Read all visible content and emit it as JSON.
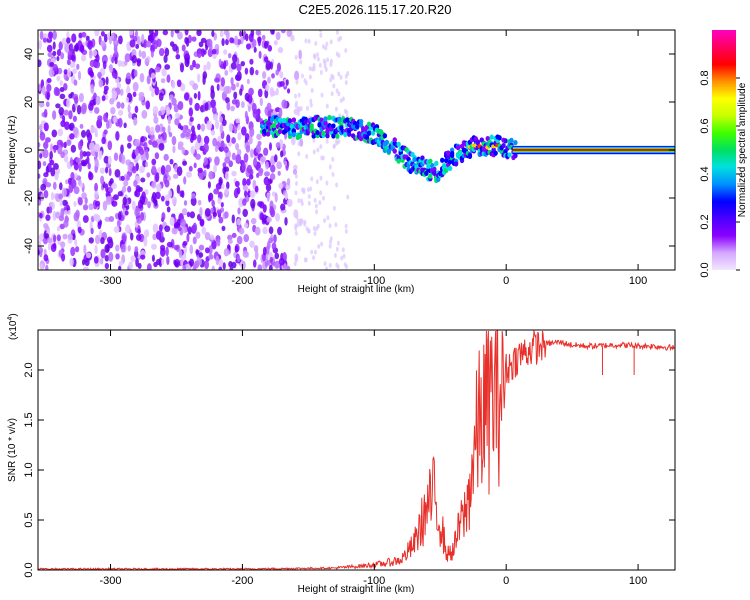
{
  "page": {
    "title": "C2E5.2026.115.17.20.R20"
  },
  "chart_data": [
    {
      "type": "heatmap",
      "xlabel": "Height of straight line (km)",
      "ylabel": "Frequency (Hz)",
      "xlim": [
        -355,
        128
      ],
      "ylim": [
        -50,
        50
      ],
      "xticks": [
        -300,
        -200,
        -100,
        0,
        100
      ],
      "yticks": [
        -40,
        -20,
        0,
        20,
        40
      ],
      "colorbar": {
        "label": "Normalized spectral amplitude",
        "range": [
          0.0,
          1.0
        ],
        "ticks": [
          0.0,
          0.2,
          0.4,
          0.6,
          0.8
        ],
        "colormap": [
          "#f2e6ff",
          "#d4a8ff",
          "#8a00ff",
          "#4b00ff",
          "#0000ff",
          "#0090ff",
          "#00e0e0",
          "#00e060",
          "#40ff00",
          "#c8ff00",
          "#ffff00",
          "#ff9000",
          "#ff0000",
          "#ff0060",
          "#ff00c0"
        ]
      },
      "signal_track": [
        {
          "x": -240,
          "y": 11
        },
        {
          "x": -180,
          "y": 10
        },
        {
          "x": -160,
          "y": 9
        },
        {
          "x": -140,
          "y": 10
        },
        {
          "x": -120,
          "y": 9
        },
        {
          "x": -100,
          "y": 7
        },
        {
          "x": -90,
          "y": 3
        },
        {
          "x": -80,
          "y": -2
        },
        {
          "x": -70,
          "y": -6
        },
        {
          "x": -60,
          "y": -8
        },
        {
          "x": -52,
          "y": -9
        },
        {
          "x": -45,
          "y": -5
        },
        {
          "x": -35,
          "y": -1
        },
        {
          "x": -25,
          "y": 2
        },
        {
          "x": -15,
          "y": 1
        },
        {
          "x": -5,
          "y": 2
        },
        {
          "x": 5,
          "y": 0.5
        },
        {
          "x": 128,
          "y": 0
        }
      ]
    },
    {
      "type": "line",
      "xlabel": "Height of straight line (km)",
      "ylabel": "SNR (10 * v/v)",
      "y_multiplier": "(x10",
      "y_multiplier_exp": "4",
      "y_multiplier_close": ")",
      "xlim": [
        -355,
        128
      ],
      "ylim": [
        0,
        2.4
      ],
      "xticks": [
        -300,
        -200,
        -100,
        0,
        100
      ],
      "yticks": [
        0.0,
        0.5,
        1.0,
        1.5,
        2.0
      ],
      "ytick_labels": [
        "0.0",
        "0.5",
        "1.0",
        "1.5",
        "2.0"
      ],
      "series": [
        {
          "color": "#e8302a",
          "x": [
            -355,
            -300,
            -200,
            -130,
            -110,
            -95,
            -80,
            -70,
            -62,
            -55,
            -50,
            -45,
            -40,
            -35,
            -30,
            -25,
            -20,
            -15,
            -10,
            -5,
            0,
            10,
            20,
            30,
            40,
            50,
            60,
            70,
            80,
            90,
            100,
            110,
            120,
            128
          ],
          "y": [
            0.01,
            0.01,
            0.01,
            0.02,
            0.04,
            0.06,
            0.1,
            0.25,
            0.55,
            0.75,
            0.5,
            0.15,
            0.2,
            0.45,
            0.6,
            1.1,
            1.5,
            1.6,
            1.75,
            1.85,
            2.0,
            2.15,
            2.22,
            2.26,
            2.28,
            2.25,
            2.24,
            2.24,
            2.25,
            2.25,
            2.24,
            2.24,
            2.23,
            2.22
          ]
        }
      ]
    }
  ]
}
